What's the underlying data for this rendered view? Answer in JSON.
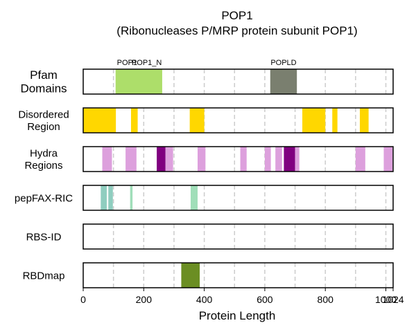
{
  "chart_data": {
    "type": "track",
    "title": "POP1",
    "subtitle": "(Ribonucleases P/MRP protein subunit POP1)",
    "xlabel": "Protein Length",
    "xlim": [
      0,
      1024
    ],
    "xticks": [
      0,
      200,
      400,
      600,
      800,
      1000,
      1024
    ],
    "xtick_labels": [
      "0",
      "200",
      "400",
      "600",
      "800",
      "1000",
      "1024"
    ],
    "grid_lines": [
      100,
      200,
      300,
      400,
      500,
      600,
      700,
      800,
      900,
      1000
    ],
    "colors": {
      "pfam_main": "#ADDE6A",
      "pfam_dark": "#7A7F6F",
      "disordered": "#FFD700",
      "hydra_light": "#DDA0DD",
      "hydra_dark": "#800080",
      "pepfax": "#8FCDBF",
      "pepfax_light": "#A0DEB9",
      "rbdmap": "#6B8E23",
      "grid": "#cccccc"
    },
    "tracks": [
      {
        "name": "Pfam\nDomains",
        "label_size": 17,
        "segments": [
          {
            "start": 107,
            "end": 261,
            "color": "pfam_main"
          },
          {
            "start": 618,
            "end": 706,
            "color": "pfam_dark"
          }
        ],
        "labels": [
          {
            "text": "POP1",
            "pos": 145
          },
          {
            "text": "POP1_N",
            "pos": 210
          },
          {
            "text": "POPLD",
            "pos": 662
          }
        ]
      },
      {
        "name": "Disordered\nRegion",
        "label_size": 15,
        "segments": [
          {
            "start": 0,
            "end": 108,
            "color": "disordered"
          },
          {
            "start": 158,
            "end": 180,
            "color": "disordered"
          },
          {
            "start": 352,
            "end": 400,
            "color": "disordered"
          },
          {
            "start": 724,
            "end": 800,
            "color": "disordered"
          },
          {
            "start": 823,
            "end": 840,
            "color": "disordered"
          },
          {
            "start": 914,
            "end": 943,
            "color": "disordered"
          }
        ]
      },
      {
        "name": "Hydra\nRegions",
        "label_size": 15,
        "segments": [
          {
            "start": 63,
            "end": 95,
            "color": "hydra_light"
          },
          {
            "start": 140,
            "end": 176,
            "color": "hydra_light"
          },
          {
            "start": 243,
            "end": 272,
            "color": "hydra_dark"
          },
          {
            "start": 272,
            "end": 297,
            "color": "hydra_light"
          },
          {
            "start": 378,
            "end": 404,
            "color": "hydra_light"
          },
          {
            "start": 519,
            "end": 540,
            "color": "hydra_light"
          },
          {
            "start": 600,
            "end": 620,
            "color": "hydra_light"
          },
          {
            "start": 635,
            "end": 657,
            "color": "hydra_light"
          },
          {
            "start": 663,
            "end": 700,
            "color": "hydra_dark"
          },
          {
            "start": 700,
            "end": 714,
            "color": "hydra_light"
          },
          {
            "start": 900,
            "end": 932,
            "color": "hydra_light"
          },
          {
            "start": 993,
            "end": 1022,
            "color": "hydra_light"
          }
        ]
      },
      {
        "name": "pepFAX-RIC",
        "label_size": 15,
        "segments": [
          {
            "start": 58,
            "end": 78,
            "color": "pepfax"
          },
          {
            "start": 83,
            "end": 98,
            "color": "pepfax"
          },
          {
            "start": 155,
            "end": 163,
            "color": "pepfax_light"
          },
          {
            "start": 355,
            "end": 378,
            "color": "pepfax_light"
          }
        ]
      },
      {
        "name": "RBS-ID",
        "label_size": 15,
        "segments": []
      },
      {
        "name": "RBDmap",
        "label_size": 15,
        "segments": [
          {
            "start": 324,
            "end": 385,
            "color": "rbdmap"
          }
        ]
      }
    ]
  }
}
